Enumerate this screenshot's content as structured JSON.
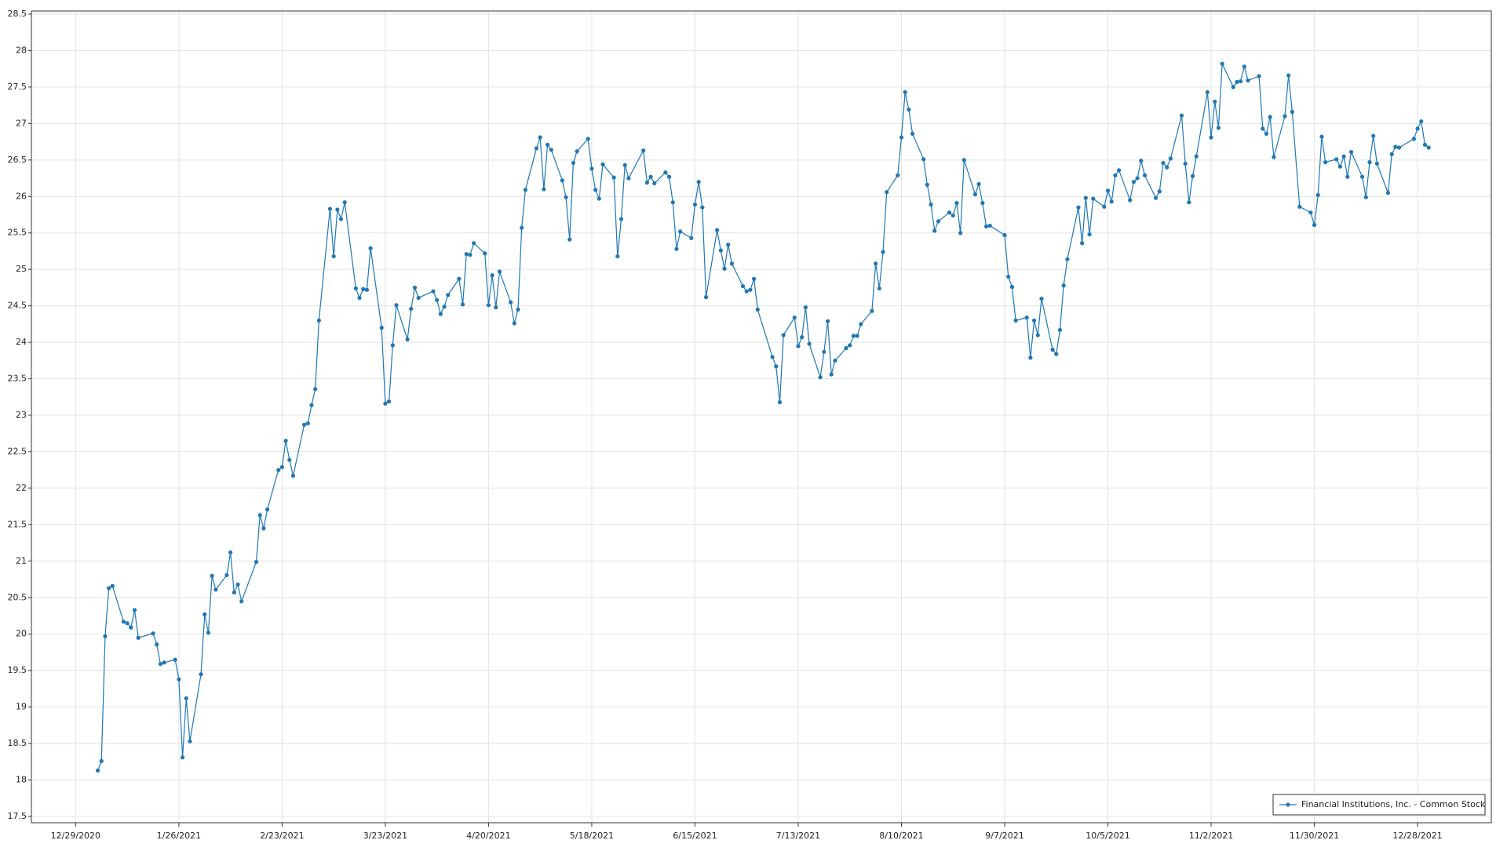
{
  "chart_data": {
    "type": "line",
    "x": [
      "2021-01-04",
      "2021-01-05",
      "2021-01-06",
      "2021-01-07",
      "2021-01-08",
      "2021-01-11",
      "2021-01-12",
      "2021-01-13",
      "2021-01-14",
      "2021-01-15",
      "2021-01-19",
      "2021-01-20",
      "2021-01-21",
      "2021-01-22",
      "2021-01-25",
      "2021-01-26",
      "2021-01-27",
      "2021-01-28",
      "2021-01-29",
      "2021-02-01",
      "2021-02-02",
      "2021-02-03",
      "2021-02-04",
      "2021-02-05",
      "2021-02-08",
      "2021-02-09",
      "2021-02-10",
      "2021-02-11",
      "2021-02-12",
      "2021-02-16",
      "2021-02-17",
      "2021-02-18",
      "2021-02-19",
      "2021-02-22",
      "2021-02-23",
      "2021-02-24",
      "2021-02-25",
      "2021-02-26",
      "2021-03-01",
      "2021-03-02",
      "2021-03-03",
      "2021-03-04",
      "2021-03-05",
      "2021-03-08",
      "2021-03-09",
      "2021-03-10",
      "2021-03-11",
      "2021-03-12",
      "2021-03-15",
      "2021-03-16",
      "2021-03-17",
      "2021-03-18",
      "2021-03-19",
      "2021-03-22",
      "2021-03-23",
      "2021-03-24",
      "2021-03-25",
      "2021-03-26",
      "2021-03-29",
      "2021-03-30",
      "2021-03-31",
      "2021-04-01",
      "2021-04-05",
      "2021-04-06",
      "2021-04-07",
      "2021-04-08",
      "2021-04-09",
      "2021-04-12",
      "2021-04-13",
      "2021-04-14",
      "2021-04-15",
      "2021-04-16",
      "2021-04-19",
      "2021-04-20",
      "2021-04-21",
      "2021-04-22",
      "2021-04-23",
      "2021-04-26",
      "2021-04-27",
      "2021-04-28",
      "2021-04-29",
      "2021-04-30",
      "2021-05-03",
      "2021-05-04",
      "2021-05-05",
      "2021-05-06",
      "2021-05-07",
      "2021-05-10",
      "2021-05-11",
      "2021-05-12",
      "2021-05-13",
      "2021-05-14",
      "2021-05-17",
      "2021-05-18",
      "2021-05-19",
      "2021-05-20",
      "2021-05-21",
      "2021-05-24",
      "2021-05-25",
      "2021-05-26",
      "2021-05-27",
      "2021-05-28",
      "2021-06-01",
      "2021-06-02",
      "2021-06-03",
      "2021-06-04",
      "2021-06-07",
      "2021-06-08",
      "2021-06-09",
      "2021-06-10",
      "2021-06-11",
      "2021-06-14",
      "2021-06-15",
      "2021-06-16",
      "2021-06-17",
      "2021-06-18",
      "2021-06-21",
      "2021-06-22",
      "2021-06-23",
      "2021-06-24",
      "2021-06-25",
      "2021-06-28",
      "2021-06-29",
      "2021-06-30",
      "2021-07-01",
      "2021-07-02",
      "2021-07-06",
      "2021-07-07",
      "2021-07-08",
      "2021-07-09",
      "2021-07-12",
      "2021-07-13",
      "2021-07-14",
      "2021-07-15",
      "2021-07-16",
      "2021-07-19",
      "2021-07-20",
      "2021-07-21",
      "2021-07-22",
      "2021-07-23",
      "2021-07-26",
      "2021-07-27",
      "2021-07-28",
      "2021-07-29",
      "2021-07-30",
      "2021-08-02",
      "2021-08-03",
      "2021-08-04",
      "2021-08-05",
      "2021-08-06",
      "2021-08-09",
      "2021-08-10",
      "2021-08-11",
      "2021-08-12",
      "2021-08-13",
      "2021-08-16",
      "2021-08-17",
      "2021-08-18",
      "2021-08-19",
      "2021-08-20",
      "2021-08-23",
      "2021-08-24",
      "2021-08-25",
      "2021-08-26",
      "2021-08-27",
      "2021-08-30",
      "2021-08-31",
      "2021-09-01",
      "2021-09-02",
      "2021-09-03",
      "2021-09-07",
      "2021-09-08",
      "2021-09-09",
      "2021-09-10",
      "2021-09-13",
      "2021-09-14",
      "2021-09-15",
      "2021-09-16",
      "2021-09-17",
      "2021-09-20",
      "2021-09-21",
      "2021-09-22",
      "2021-09-23",
      "2021-09-24",
      "2021-09-27",
      "2021-09-28",
      "2021-09-29",
      "2021-09-30",
      "2021-10-01",
      "2021-10-04",
      "2021-10-05",
      "2021-10-06",
      "2021-10-07",
      "2021-10-08",
      "2021-10-11",
      "2021-10-12",
      "2021-10-13",
      "2021-10-14",
      "2021-10-15",
      "2021-10-18",
      "2021-10-19",
      "2021-10-20",
      "2021-10-21",
      "2021-10-22",
      "2021-10-25",
      "2021-10-26",
      "2021-10-27",
      "2021-10-28",
      "2021-10-29",
      "2021-11-01",
      "2021-11-02",
      "2021-11-03",
      "2021-11-04",
      "2021-11-05",
      "2021-11-08",
      "2021-11-09",
      "2021-11-10",
      "2021-11-11",
      "2021-11-12",
      "2021-11-15",
      "2021-11-16",
      "2021-11-17",
      "2021-11-18",
      "2021-11-19",
      "2021-11-22",
      "2021-11-23",
      "2021-11-24",
      "2021-11-26",
      "2021-11-29",
      "2021-11-30",
      "2021-12-01",
      "2021-12-02",
      "2021-12-03",
      "2021-12-06",
      "2021-12-07",
      "2021-12-08",
      "2021-12-09",
      "2021-12-10",
      "2021-12-13",
      "2021-12-14",
      "2021-12-15",
      "2021-12-16",
      "2021-12-17",
      "2021-12-20",
      "2021-12-21",
      "2021-12-22",
      "2021-12-23",
      "2021-12-27",
      "2021-12-28",
      "2021-12-29",
      "2021-12-30",
      "2021-12-31"
    ],
    "series": [
      {
        "name": "Financial Institutions, Inc. - Common Stock",
        "color": "#1f77b4",
        "values": [
          18.13,
          18.26,
          19.97,
          20.63,
          20.66,
          20.17,
          20.15,
          20.09,
          20.33,
          19.95,
          20.01,
          19.86,
          19.59,
          19.61,
          19.65,
          19.38,
          18.31,
          19.12,
          18.53,
          19.45,
          20.27,
          20.02,
          20.8,
          20.61,
          20.81,
          21.12,
          20.57,
          20.68,
          20.45,
          20.99,
          21.63,
          21.45,
          21.71,
          22.25,
          22.29,
          22.65,
          22.39,
          22.17,
          22.87,
          22.89,
          23.14,
          23.36,
          24.3,
          25.83,
          25.18,
          25.82,
          25.69,
          25.92,
          24.74,
          24.61,
          24.73,
          24.72,
          25.29,
          24.2,
          23.16,
          23.19,
          23.96,
          24.51,
          24.04,
          24.46,
          24.75,
          24.61,
          24.7,
          24.58,
          24.39,
          24.49,
          24.65,
          24.87,
          24.52,
          25.21,
          25.2,
          25.36,
          25.22,
          24.51,
          24.92,
          24.48,
          24.97,
          24.55,
          24.26,
          24.45,
          25.57,
          26.09,
          26.66,
          26.81,
          26.1,
          26.71,
          26.64,
          26.22,
          25.99,
          25.41,
          26.46,
          26.62,
          26.79,
          26.38,
          26.09,
          25.97,
          26.44,
          26.26,
          25.18,
          25.69,
          26.43,
          26.25,
          26.63,
          26.19,
          26.27,
          26.18,
          26.33,
          26.27,
          25.92,
          25.28,
          25.52,
          25.43,
          25.89,
          26.2,
          25.85,
          24.62,
          25.54,
          25.26,
          25.01,
          25.34,
          25.08,
          24.77,
          24.7,
          24.72,
          24.87,
          24.45,
          23.8,
          23.67,
          23.18,
          24.1,
          24.34,
          23.95,
          24.07,
          24.48,
          23.98,
          23.52,
          23.87,
          24.29,
          23.56,
          23.75,
          23.92,
          23.96,
          24.09,
          24.09,
          24.25,
          24.43,
          25.08,
          24.74,
          25.24,
          26.06,
          26.29,
          26.81,
          27.43,
          27.19,
          26.86,
          26.51,
          26.16,
          25.89,
          25.53,
          25.66,
          25.78,
          25.74,
          25.91,
          25.5,
          26.5,
          26.03,
          26.17,
          25.91,
          25.59,
          25.6,
          25.47,
          24.9,
          24.76,
          24.3,
          24.34,
          23.79,
          24.3,
          24.1,
          24.6,
          23.9,
          23.84,
          24.17,
          24.78,
          25.14,
          25.85,
          25.36,
          25.98,
          25.48,
          25.97,
          25.86,
          26.08,
          25.93,
          26.29,
          26.36,
          25.95,
          26.2,
          26.25,
          26.49,
          26.29,
          25.98,
          26.07,
          26.46,
          26.4,
          26.52,
          27.11,
          26.45,
          25.92,
          26.28,
          26.55,
          27.43,
          26.81,
          27.3,
          26.94,
          27.82,
          27.5,
          27.57,
          27.58,
          27.78,
          27.59,
          27.65,
          26.93,
          26.86,
          27.09,
          26.54,
          27.1,
          27.66,
          27.16,
          25.86,
          25.78,
          25.61,
          26.02,
          26.82,
          26.47,
          26.51,
          26.41,
          26.55,
          26.27,
          26.61,
          26.27,
          25.99,
          26.47,
          26.83,
          26.45,
          26.05,
          26.58,
          26.68,
          26.67,
          26.79,
          26.93,
          27.03,
          26.71,
          26.67
        ]
      }
    ],
    "xlim": [
      "2020-12-17",
      "2022-01-17"
    ],
    "xticks": [
      {
        "value": "2020-12-29",
        "label": "12/29/2020"
      },
      {
        "value": "2021-01-26",
        "label": "1/26/2021"
      },
      {
        "value": "2021-02-23",
        "label": "2/23/2021"
      },
      {
        "value": "2021-03-23",
        "label": "3/23/2021"
      },
      {
        "value": "2021-04-20",
        "label": "4/20/2021"
      },
      {
        "value": "2021-05-18",
        "label": "5/18/2021"
      },
      {
        "value": "2021-06-15",
        "label": "6/15/2021"
      },
      {
        "value": "2021-07-13",
        "label": "7/13/2021"
      },
      {
        "value": "2021-08-10",
        "label": "8/10/2021"
      },
      {
        "value": "2021-09-07",
        "label": "9/7/2021"
      },
      {
        "value": "2021-10-05",
        "label": "10/5/2021"
      },
      {
        "value": "2021-11-02",
        "label": "11/2/2021"
      },
      {
        "value": "2021-11-30",
        "label": "11/30/2021"
      },
      {
        "value": "2021-12-28",
        "label": "12/28/2021"
      }
    ],
    "ylim": [
      17.5,
      28.5
    ],
    "yticks": [
      17.5,
      18,
      18.5,
      19,
      19.5,
      20,
      20.5,
      21,
      21.5,
      22,
      22.5,
      23,
      23.5,
      24,
      24.5,
      25,
      25.5,
      26,
      26.5,
      27,
      27.5,
      28,
      28.5
    ],
    "grid": true,
    "legend": "lower right"
  }
}
